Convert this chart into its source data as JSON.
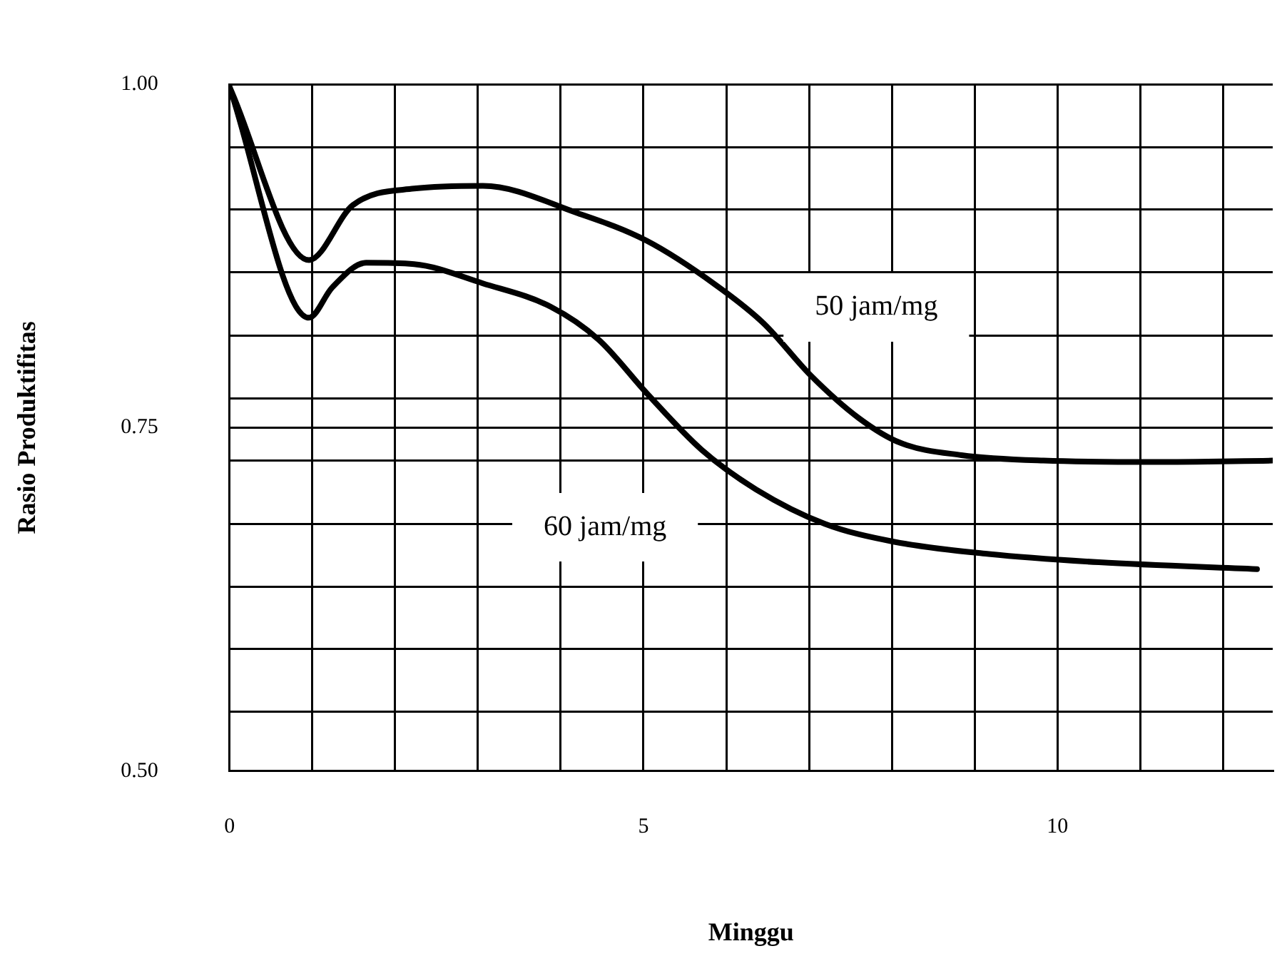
{
  "chart_data": {
    "type": "line",
    "xlabel": "Minggu",
    "ylabel": "Rasio Produktifitas",
    "xlim": [
      0,
      12.6
    ],
    "ylim": [
      0.5,
      1.0
    ],
    "xticks": [
      0,
      {
        "value": 1,
        "label": null
      },
      {
        "value": 2,
        "label": null
      },
      {
        "value": 3,
        "label": null
      },
      {
        "value": 4,
        "label": null
      },
      5,
      {
        "value": 6,
        "label": null
      },
      {
        "value": 7,
        "label": null
      },
      {
        "value": 8,
        "label": null
      },
      {
        "value": 9,
        "label": null
      },
      10,
      {
        "value": 11,
        "label": null
      },
      {
        "value": 12,
        "label": null
      }
    ],
    "yticks": [
      {
        "value": 0.5,
        "label": "0.50"
      },
      {
        "value": 0.543,
        "label": null
      },
      {
        "value": 0.589,
        "label": null
      },
      {
        "value": 0.634,
        "label": null
      },
      {
        "value": 0.68,
        "label": null
      },
      {
        "value": 0.726,
        "label": null
      },
      {
        "value": 0.75,
        "label": "0.75"
      },
      {
        "value": 0.771,
        "label": null
      },
      {
        "value": 0.817,
        "label": null
      },
      {
        "value": 0.863,
        "label": null
      },
      {
        "value": 0.909,
        "label": null
      },
      {
        "value": 0.954,
        "label": null
      },
      {
        "value": 1.0,
        "label": "1.00"
      }
    ],
    "grid": true,
    "legend": false,
    "marker": "none",
    "line_style": "solid",
    "series": [
      {
        "name": "50 jam/mg",
        "color": "#000000",
        "x": [
          0,
          0.96,
          1.49,
          2.23,
          3.06,
          4.21,
          5.04,
          5.87,
          6.45,
          7.02,
          7.6,
          8.1,
          8.84,
          9.83,
          11.16,
          12.6
        ],
        "values": [
          0.998,
          0.872,
          0.912,
          0.924,
          0.926,
          0.906,
          0.886,
          0.854,
          0.826,
          0.788,
          0.757,
          0.739,
          0.73,
          0.726,
          0.725,
          0.726
        ]
      },
      {
        "name": "60 jam/mg",
        "color": "#000000",
        "x": [
          0,
          0.96,
          1.24,
          1.65,
          2.23,
          3.06,
          3.88,
          4.46,
          5.04,
          5.7,
          6.36,
          7.19,
          8.02,
          9.17,
          10.5,
          12.41
        ],
        "values": [
          0.998,
          0.83,
          0.852,
          0.87,
          0.869,
          0.855,
          0.838,
          0.814,
          0.775,
          0.734,
          0.705,
          0.68,
          0.667,
          0.658,
          0.652,
          0.647
        ]
      }
    ]
  }
}
